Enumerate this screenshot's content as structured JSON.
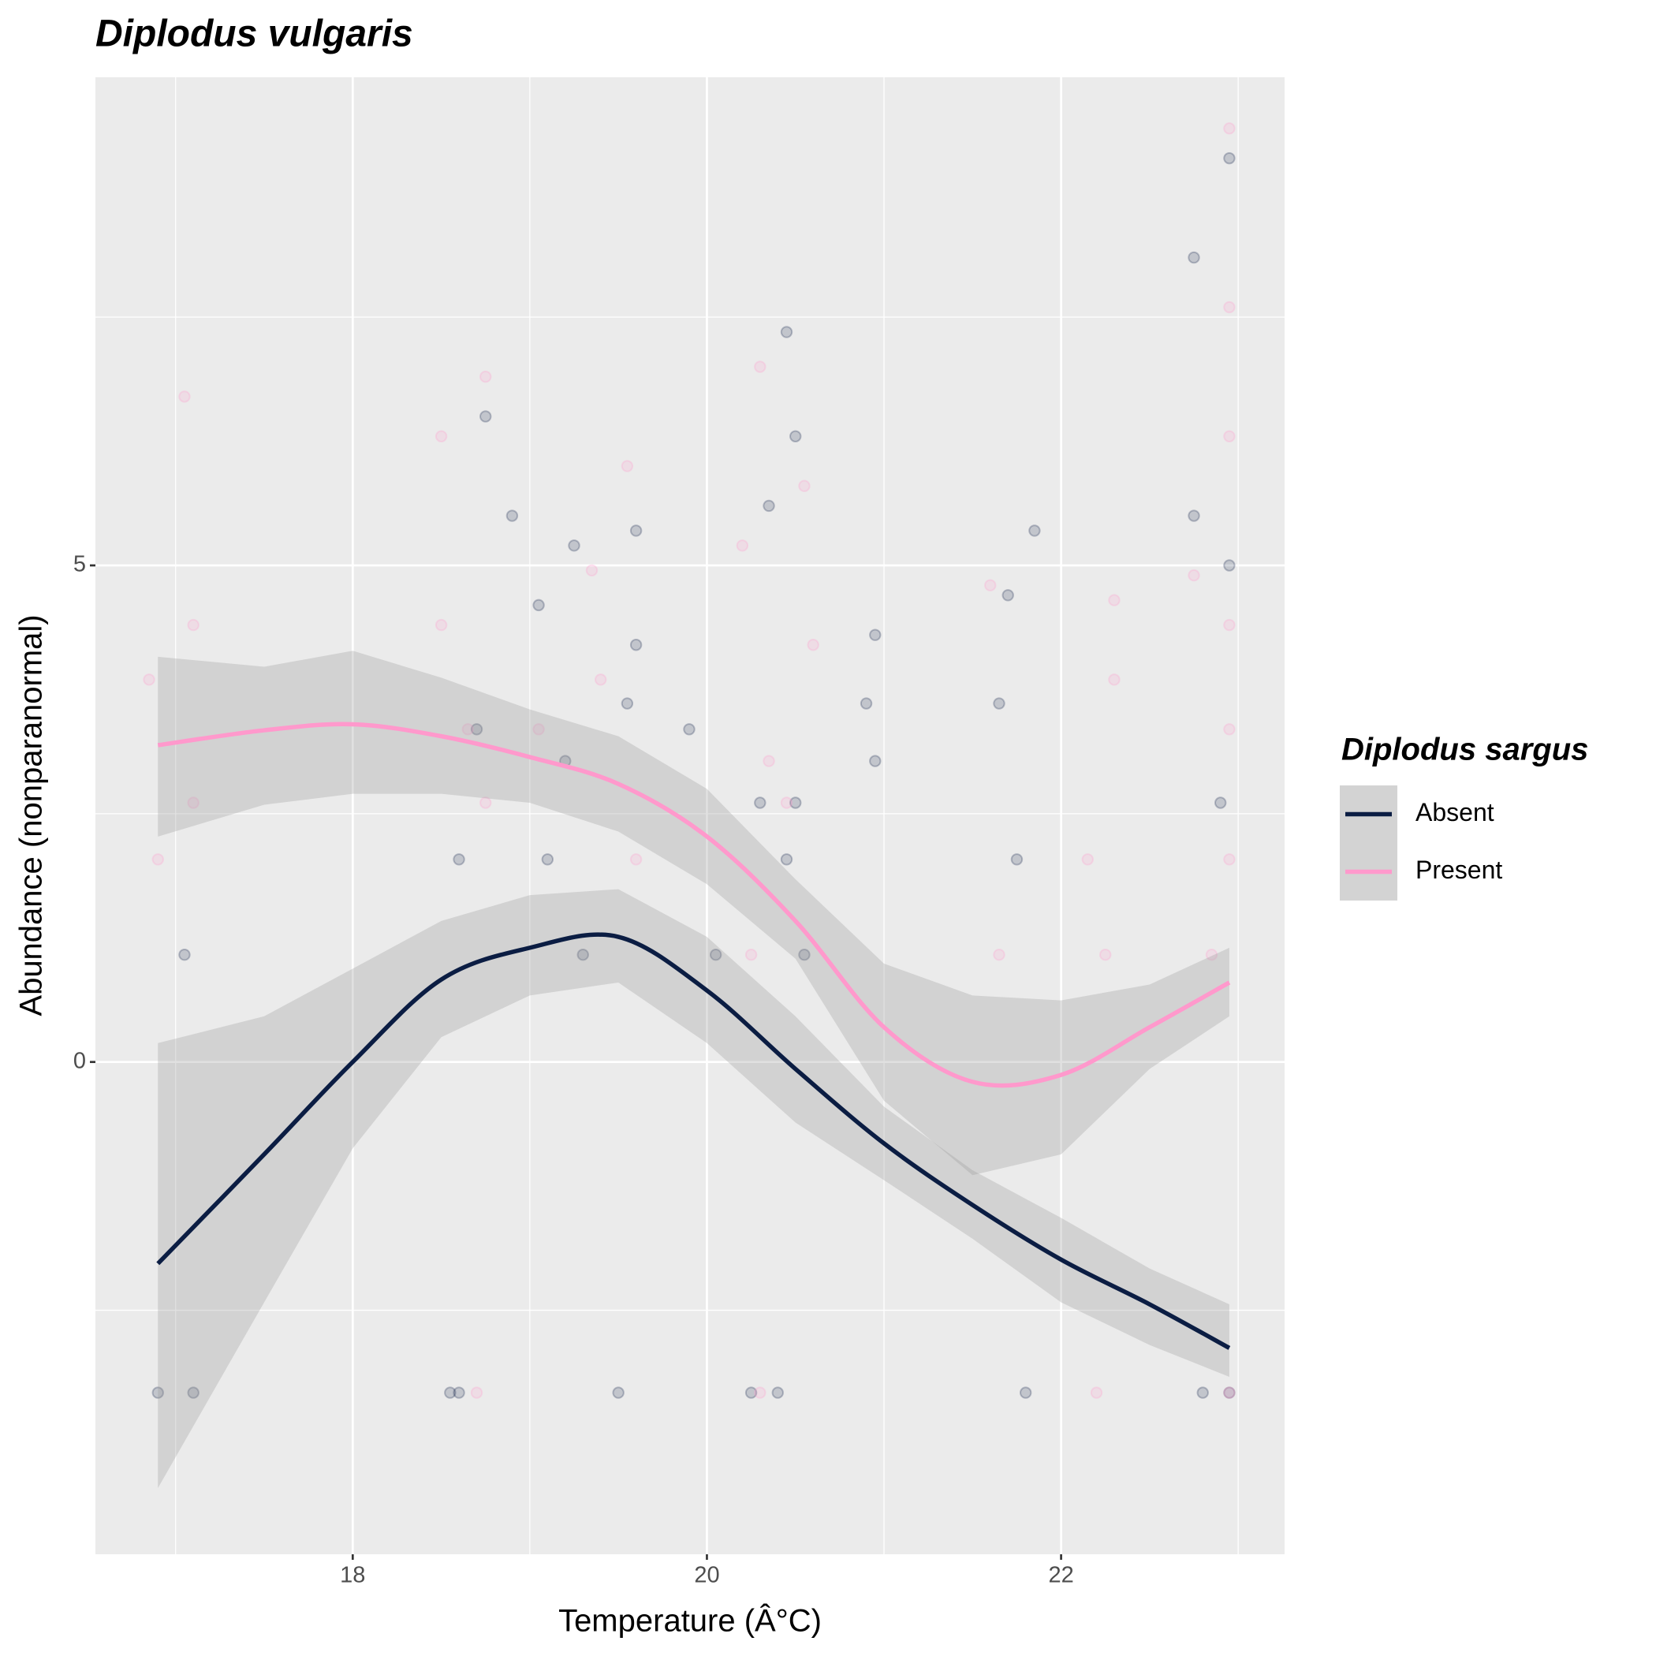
{
  "chart_data": {
    "type": "scatter-smooth",
    "title": "Diplodus vulgaris",
    "x_label": "Temperature (Â°C)",
    "y_label": "Abundance (nonparanormal)",
    "legend_title": "Diplodus sargus",
    "legend_position": "right",
    "grid": true,
    "xlim": [
      16.547,
      23.262
    ],
    "ylim": [
      -4.957,
      9.915
    ],
    "xticks": [
      18,
      20,
      22
    ],
    "yticks": [
      0,
      5
    ],
    "xminor": [
      17,
      19,
      21,
      23
    ],
    "yminor": [
      -2.5,
      2.5,
      7.5
    ],
    "series": [
      {
        "name": "Absent",
        "color": "#0b1d43",
        "x": [
          16.9,
          17.1,
          17.05,
          18.55,
          18.6,
          18.7,
          18.75,
          18.9,
          19.05,
          19.2,
          19.25,
          19.3,
          19.5,
          19.55,
          19.6,
          19.6,
          19.9,
          20.25,
          20.3,
          20.35,
          20.4,
          20.45,
          20.45,
          20.5,
          20.5,
          20.55,
          20.9,
          20.95,
          20.95,
          21.65,
          21.7,
          21.75,
          21.8,
          21.85,
          22.75,
          22.75,
          22.8,
          22.9,
          22.95,
          22.95,
          22.95,
          18.6,
          19.1,
          20.05
        ],
        "y": [
          -3.33,
          -3.33,
          1.08,
          -3.33,
          2.04,
          3.35,
          6.5,
          5.5,
          4.6,
          3.03,
          5.2,
          1.08,
          -3.33,
          3.61,
          4.2,
          5.35,
          3.35,
          -3.33,
          2.61,
          5.6,
          -3.33,
          2.04,
          7.35,
          2.61,
          6.3,
          1.08,
          3.61,
          4.3,
          3.03,
          3.61,
          4.7,
          2.04,
          -3.33,
          5.35,
          8.1,
          5.5,
          -3.33,
          2.61,
          9.1,
          5.0,
          -3.33,
          -3.33,
          2.04,
          1.08
        ],
        "smooth": {
          "x": [
            16.9,
            17.5,
            18,
            18.5,
            19,
            19.5,
            20,
            20.5,
            21,
            21.5,
            22,
            22.5,
            22.95
          ],
          "y": [
            -2.03,
            -0.93,
            0,
            0.83,
            1.15,
            1.26,
            0.72,
            -0.07,
            -0.82,
            -1.44,
            -1.99,
            -2.44,
            -2.88
          ],
          "lower": [
            -4.29,
            -2.42,
            -0.87,
            0.25,
            0.67,
            0.8,
            0.19,
            -0.61,
            -1.19,
            -1.78,
            -2.42,
            -2.85,
            -3.17
          ],
          "upper": [
            0.19,
            0.46,
            0.94,
            1.42,
            1.68,
            1.74,
            1.26,
            0.46,
            -0.45,
            -1.09,
            -1.57,
            -2.08,
            -2.44
          ]
        }
      },
      {
        "name": "Present",
        "color": "#ff99cc",
        "x": [
          16.85,
          16.9,
          17.05,
          17.1,
          17.1,
          18.5,
          18.5,
          18.65,
          18.75,
          18.75,
          19.05,
          19.35,
          19.4,
          19.55,
          19.6,
          20.2,
          20.25,
          20.3,
          20.35,
          20.45,
          20.55,
          20.6,
          20.3,
          21.6,
          21.65,
          22.15,
          22.2,
          22.3,
          22.25,
          22.3,
          22.75,
          22.85,
          22.95,
          22.95,
          22.95,
          22.95,
          22.95,
          22.95,
          22.95,
          18.7
        ],
        "y": [
          3.85,
          2.04,
          6.7,
          4.4,
          2.61,
          6.3,
          4.4,
          3.35,
          6.9,
          2.61,
          3.35,
          4.95,
          3.85,
          6.0,
          2.04,
          5.2,
          1.08,
          7.0,
          3.03,
          2.61,
          5.8,
          4.2,
          -3.33,
          4.8,
          1.08,
          2.04,
          -3.33,
          4.65,
          1.08,
          3.85,
          4.9,
          1.08,
          9.4,
          7.6,
          6.3,
          4.4,
          3.35,
          2.04,
          -3.33,
          -3.33
        ],
        "smooth": {
          "x": [
            16.9,
            17.5,
            18,
            18.5,
            19,
            19.5,
            20,
            20.5,
            21,
            21.5,
            22,
            22.5,
            22.95
          ],
          "y": [
            3.19,
            3.34,
            3.4,
            3.28,
            3.07,
            2.8,
            2.27,
            1.42,
            0.35,
            -0.2,
            -0.13,
            0.35,
            0.8
          ],
          "lower": [
            2.27,
            2.59,
            2.7,
            2.7,
            2.61,
            2.32,
            1.79,
            1.04,
            -0.39,
            -1.14,
            -0.93,
            -0.07,
            0.46
          ],
          "upper": [
            4.08,
            3.98,
            4.14,
            3.87,
            3.55,
            3.28,
            2.75,
            1.84,
            0.99,
            0.67,
            0.62,
            0.78,
            1.15
          ]
        }
      }
    ]
  }
}
